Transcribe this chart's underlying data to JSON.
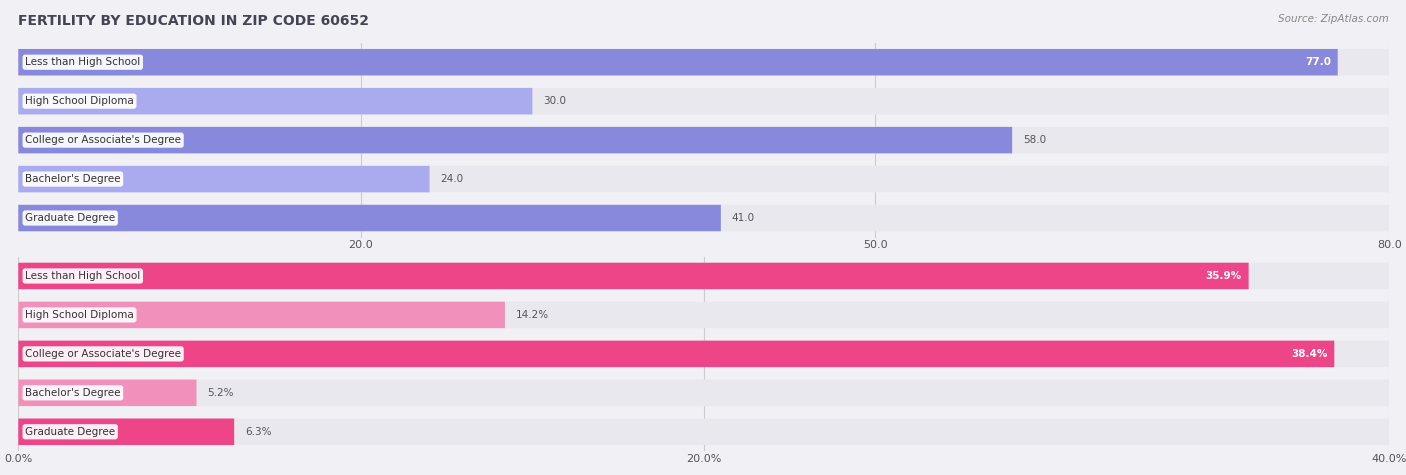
{
  "title": "FERTILITY BY EDUCATION IN ZIP CODE 60652",
  "source": "Source: ZipAtlas.com",
  "top_section": {
    "categories": [
      "Less than High School",
      "High School Diploma",
      "College or Associate's Degree",
      "Bachelor's Degree",
      "Graduate Degree"
    ],
    "values": [
      77.0,
      30.0,
      58.0,
      24.0,
      41.0
    ],
    "xlim": [
      0,
      80
    ],
    "xticks": [
      20.0,
      50.0,
      80.0
    ],
    "bar_color": "#8888dd",
    "bar_color_light": "#aaaaee",
    "label_bg": "#ffffff",
    "inside_threshold": 60,
    "value_color_inside": "#ffffff",
    "value_color_outside": "#666666"
  },
  "bottom_section": {
    "categories": [
      "Less than High School",
      "High School Diploma",
      "College or Associate's Degree",
      "Bachelor's Degree",
      "Graduate Degree"
    ],
    "values": [
      35.9,
      14.2,
      38.4,
      5.2,
      6.3
    ],
    "xlim": [
      0,
      40
    ],
    "xticks": [
      0.0,
      20.0,
      40.0
    ],
    "xtick_labels": [
      "0.0%",
      "20.0%",
      "40.0%"
    ],
    "bar_color": "#ee4488",
    "bar_color_light": "#f090bb",
    "label_bg": "#ffffff",
    "inside_threshold": 30,
    "value_color_inside": "#ffffff",
    "value_color_outside": "#666666"
  },
  "background_color": "#f0f0f5",
  "bar_bg_color": "#e8e8ee",
  "title_fontsize": 10,
  "source_fontsize": 7.5,
  "label_fontsize": 7.5,
  "value_fontsize": 7.5,
  "tick_fontsize": 8
}
